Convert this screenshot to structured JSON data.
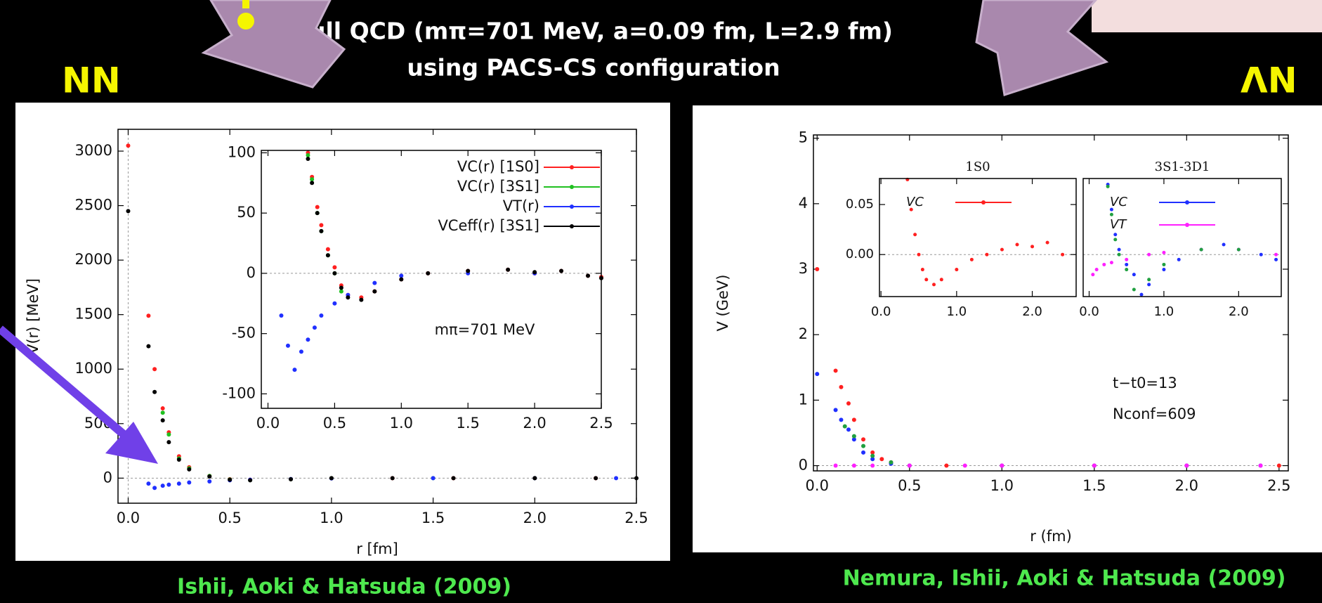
{
  "slide": {
    "title_line1": "Full QCD (mπ=701 MeV, a=0.09 fm, L=2.9 fm)",
    "title_line2": "using PACS-CS configuration",
    "left_label": "NN",
    "right_label": "ΛN",
    "left_credit": "Ishii, Aoki & Hatsuda (2009)",
    "right_credit": "Nemura, Ishii,  Aoki & Hatsuda (2009)"
  },
  "chart_data": [
    {
      "type": "scatter",
      "xlabel": "r [fm]",
      "ylabel": "V(r) [MeV]",
      "xlim": [
        -0.05,
        2.5
      ],
      "ylim": [
        -230,
        3200
      ],
      "xticks": [
        {
          "value": 0,
          "label": "0.0"
        },
        0.5,
        {
          "value": 1,
          "label": "1.0"
        },
        1.5,
        {
          "value": 2,
          "label": "2.0"
        },
        2.5
      ],
      "yticks": [
        0,
        500,
        1000,
        1500,
        2000,
        2500,
        3000
      ],
      "series": [
        {
          "color": "#ff2020",
          "x": [
            0,
            0.1,
            0.13,
            0.17,
            0.2,
            0.25,
            0.3,
            0.4,
            0.5,
            0.6,
            0.8,
            1.0,
            1.3,
            1.6,
            2.0,
            2.3
          ],
          "values": [
            3050,
            1490,
            1000,
            640,
            420,
            200,
            100,
            20,
            -10,
            -15,
            -10,
            0,
            0,
            0,
            0,
            0
          ]
        },
        {
          "color": "#20c020",
          "x": [
            0.17,
            0.2,
            0.25,
            0.3,
            0.4,
            0.5,
            0.6,
            0.8,
            1.0,
            1.5,
            2.0
          ],
          "values": [
            600,
            400,
            180,
            90,
            20,
            -12,
            -18,
            -10,
            0,
            0,
            0
          ]
        },
        {
          "color": "#2030ff",
          "x": [
            0.1,
            0.13,
            0.17,
            0.2,
            0.25,
            0.3,
            0.4,
            0.5,
            0.6,
            0.8,
            1.0,
            1.5,
            2.0,
            2.4
          ],
          "values": [
            -50,
            -90,
            -70,
            -60,
            -50,
            -40,
            -30,
            -20,
            -15,
            -8,
            -3,
            0,
            0,
            0
          ]
        },
        {
          "color": "#000000",
          "x": [
            0,
            0.1,
            0.13,
            0.17,
            0.2,
            0.25,
            0.3,
            0.4,
            0.5,
            0.6,
            0.8,
            1.0,
            1.3,
            1.6,
            2.0,
            2.3,
            2.5
          ],
          "values": [
            2450,
            1210,
            790,
            530,
            330,
            170,
            80,
            15,
            -15,
            -20,
            -10,
            0,
            0,
            0,
            0,
            0,
            0
          ]
        }
      ]
    },
    {
      "type": "scatter",
      "annotations": [
        "mπ=701 MeV"
      ],
      "xlim": [
        -0.05,
        2.5
      ],
      "ylim": [
        -112,
        102
      ],
      "xticks": [
        {
          "value": 0,
          "label": "0.0"
        },
        0.5,
        {
          "value": 1,
          "label": "1.0"
        },
        1.5,
        {
          "value": 2,
          "label": "2.0"
        },
        2.5
      ],
      "yticks": [
        -100,
        -50,
        0,
        50,
        100
      ],
      "series": [
        {
          "name": "VC(r) [1S0]",
          "color": "#ff2020",
          "x": [
            0.3,
            0.33,
            0.37,
            0.4,
            0.45,
            0.5,
            0.55,
            0.6,
            0.7,
            0.8,
            1.0,
            1.2,
            1.5,
            1.8,
            2.0,
            2.2,
            2.4,
            2.5
          ],
          "values": [
            100,
            80,
            55,
            40,
            20,
            5,
            -10,
            -18,
            -20,
            -15,
            -5,
            0,
            2,
            3,
            0,
            2,
            -2,
            -3
          ]
        },
        {
          "name": "VC(r) [3S1]",
          "color": "#20c020",
          "x": [
            0.3,
            0.33,
            0.37,
            0.4,
            0.45,
            0.5,
            0.55
          ],
          "values": [
            98,
            78,
            50,
            35,
            15,
            0,
            -15
          ]
        },
        {
          "name": "VT(r)",
          "color": "#2030ff",
          "x": [
            0.1,
            0.15,
            0.2,
            0.25,
            0.3,
            0.35,
            0.4,
            0.5,
            0.6,
            0.8,
            1.0,
            1.5,
            2.0
          ],
          "values": [
            -35,
            -60,
            -80,
            -65,
            -55,
            -45,
            -35,
            -25,
            -18,
            -8,
            -2,
            0,
            0
          ]
        },
        {
          "name": "VCeff(r) [3S1]",
          "color": "#000000",
          "x": [
            0.3,
            0.33,
            0.37,
            0.4,
            0.45,
            0.5,
            0.55,
            0.6,
            0.7,
            0.8,
            1.0,
            1.2,
            1.5,
            1.8,
            2.0,
            2.2,
            2.4,
            2.5
          ],
          "values": [
            95,
            75,
            50,
            35,
            15,
            0,
            -12,
            -20,
            -22,
            -15,
            -5,
            0,
            2,
            3,
            1,
            2,
            -2,
            -4
          ]
        }
      ]
    },
    {
      "type": "scatter",
      "xlabel": "r (fm)",
      "ylabel": "V (GeV)",
      "annotations": [
        "t−t0=13",
        "Nconf=609"
      ],
      "xlim": [
        -0.02,
        2.55
      ],
      "ylim": [
        -0.08,
        5.05
      ],
      "xticks": [
        {
          "value": 0,
          "label": "0.0"
        },
        0.5,
        {
          "value": 1,
          "label": "1.0"
        },
        1.5,
        {
          "value": 2,
          "label": "2.0"
        },
        2.5
      ],
      "yticks": [
        0,
        1,
        2,
        3,
        4,
        5
      ],
      "series": [
        {
          "color": "#ff2020",
          "x": [
            0,
            0.1,
            0.13,
            0.17,
            0.2,
            0.25,
            0.3,
            0.35,
            0.4,
            0.5,
            0.7,
            1.0,
            1.5,
            2.0,
            2.5
          ],
          "values": [
            3.0,
            1.45,
            1.2,
            0.95,
            0.7,
            0.4,
            0.2,
            0.1,
            0.05,
            0,
            0,
            0,
            0,
            0,
            0
          ]
        },
        {
          "color": "#2030ff",
          "x": [
            0,
            0.1,
            0.13,
            0.17,
            0.2,
            0.25,
            0.3,
            0.4,
            0.5,
            1.0,
            1.5,
            2.0,
            2.4
          ],
          "values": [
            1.4,
            0.85,
            0.7,
            0.55,
            0.4,
            0.2,
            0.1,
            0.03,
            0,
            0,
            0,
            0,
            0
          ]
        },
        {
          "color": "#ff20ff",
          "x": [
            0.1,
            0.2,
            0.3,
            0.5,
            0.8,
            1.0,
            1.5,
            2.0,
            2.4
          ],
          "values": [
            0,
            0,
            0,
            0,
            0,
            0,
            0,
            0,
            0
          ]
        },
        {
          "color": "#20a040",
          "x": [
            0.15,
            0.2,
            0.25,
            0.3,
            0.4
          ],
          "values": [
            0.6,
            0.45,
            0.3,
            0.15,
            0.05
          ]
        }
      ]
    },
    {
      "type": "scatter",
      "title": "1S0",
      "xlim": [
        -0.02,
        2.58
      ],
      "ylim": [
        -0.042,
        0.076
      ],
      "xticks": [
        {
          "value": 0,
          "label": "0.0"
        },
        {
          "value": 1,
          "label": "1.0"
        },
        {
          "value": 2,
          "label": "2.0"
        }
      ],
      "yticks": [
        {
          "value": 0,
          "label": "0.00"
        },
        0.05
      ],
      "series": [
        {
          "name": "VC",
          "color": "#ff2020",
          "x": [
            0.35,
            0.4,
            0.45,
            0.5,
            0.55,
            0.6,
            0.7,
            0.8,
            1.0,
            1.2,
            1.4,
            1.6,
            1.8,
            2.0,
            2.2,
            2.4
          ],
          "values": [
            0.075,
            0.045,
            0.02,
            0.0,
            -0.015,
            -0.025,
            -0.03,
            -0.025,
            -0.015,
            -0.005,
            0.0,
            0.005,
            0.01,
            0.008,
            0.012,
            0.0
          ]
        }
      ]
    },
    {
      "type": "scatter",
      "title": "3S1-3D1",
      "xlim": [
        -0.08,
        2.57
      ],
      "ylim": [
        -0.042,
        0.076
      ],
      "xticks": [
        {
          "value": 0,
          "label": "0.0"
        },
        {
          "value": 1,
          "label": "1.0"
        },
        {
          "value": 2,
          "label": "2.0"
        }
      ],
      "series": [
        {
          "name": "VC",
          "color": "#2030ff",
          "x": [
            0.25,
            0.3,
            0.35,
            0.4,
            0.5,
            0.6,
            0.7,
            0.8,
            1.0,
            1.2,
            1.5,
            1.8,
            2.0,
            2.3,
            2.5
          ],
          "values": [
            0.07,
            0.045,
            0.02,
            0.005,
            -0.01,
            -0.02,
            -0.04,
            -0.03,
            -0.015,
            -0.005,
            0.005,
            0.01,
            0.005,
            0.0,
            -0.005
          ]
        },
        {
          "name": "VT",
          "color": "#ff20ff",
          "x": [
            0.05,
            0.1,
            0.2,
            0.3,
            0.5,
            0.8,
            1.0,
            1.5,
            2.0,
            2.5
          ],
          "values": [
            -0.02,
            -0.015,
            -0.01,
            -0.008,
            -0.005,
            0,
            0.002,
            0.005,
            0.005,
            0
          ]
        },
        {
          "color": "#20a040",
          "x": [
            0.25,
            0.3,
            0.35,
            0.4,
            0.5,
            0.6,
            0.8,
            1.0,
            1.5,
            2.0
          ],
          "values": [
            0.068,
            0.04,
            0.015,
            0.0,
            -0.015,
            -0.035,
            -0.025,
            -0.01,
            0.005,
            0.005
          ]
        }
      ]
    }
  ]
}
